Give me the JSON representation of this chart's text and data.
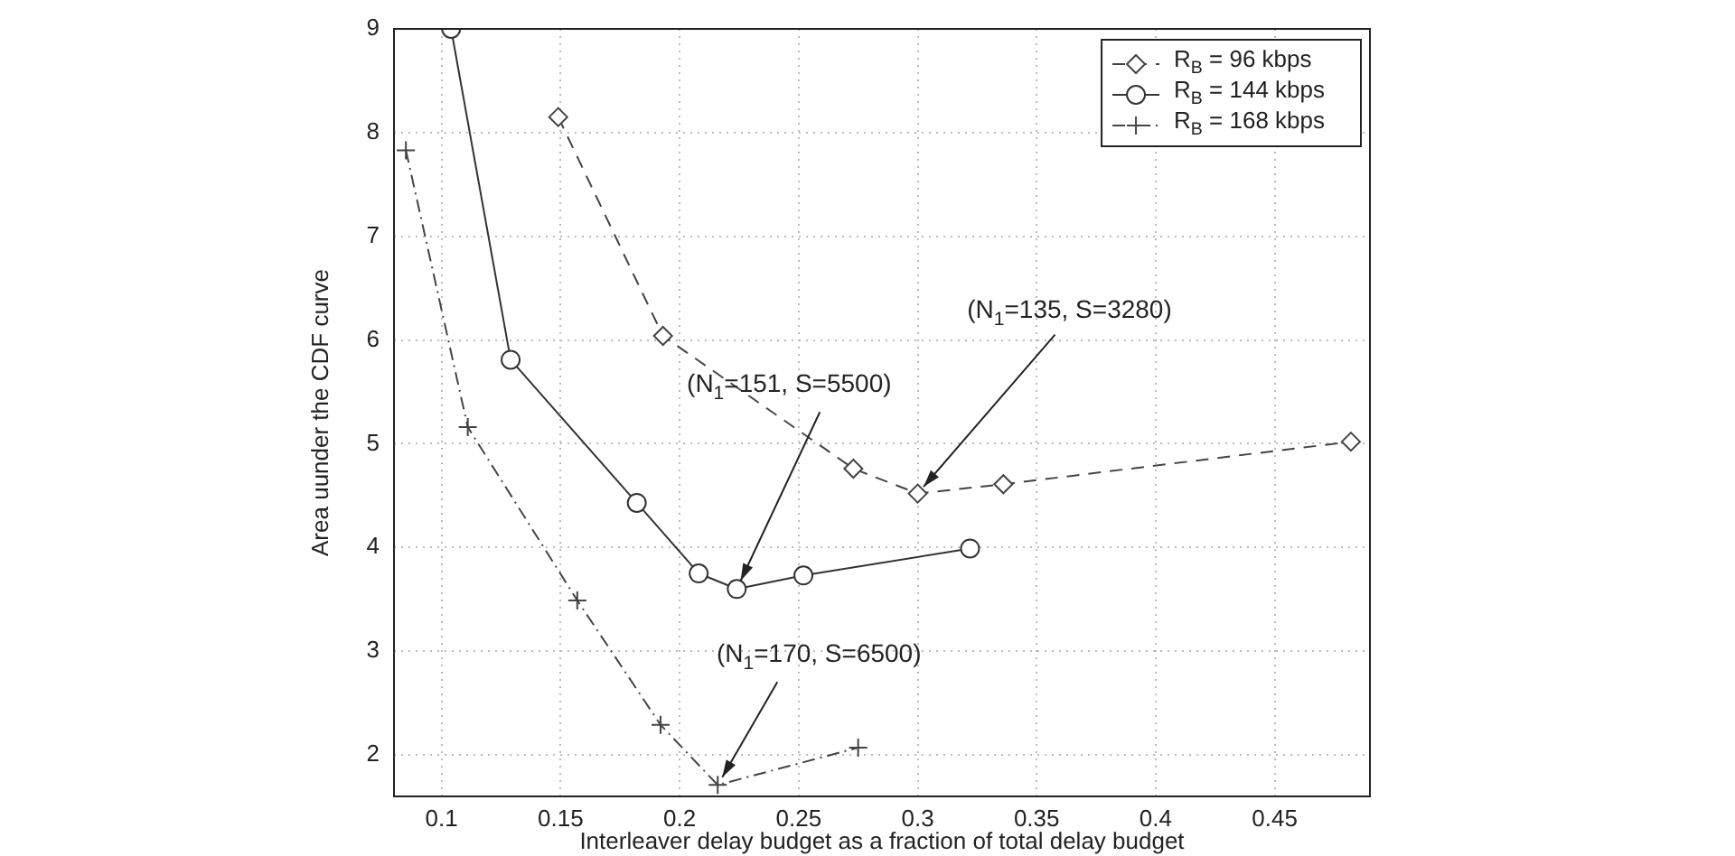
{
  "chart_data": {
    "type": "line",
    "xlabel": "Interleaver delay budget as a fraction of total delay budget",
    "ylabel": "Area uunder the CDF curve",
    "xlim": [
      0.08,
      0.49
    ],
    "xticks": [
      0.1,
      0.15,
      0.2,
      0.25,
      0.3,
      0.35,
      0.4,
      0.45
    ],
    "ylim": [
      1.6,
      9
    ],
    "yticks": [
      2,
      3,
      4,
      5,
      6,
      7,
      8,
      9
    ],
    "grid": true,
    "legend": "top right",
    "series": [
      {
        "name": "R$_{B}$ = 96 kbps",
        "color": "#444444",
        "marker": "diamond",
        "line_style": "dashed",
        "x": [
          0.149,
          0.193,
          0.273,
          0.3,
          0.336,
          0.482
        ],
        "values": [
          8.15,
          6.04,
          4.76,
          4.52,
          4.61,
          5.02
        ]
      },
      {
        "name": "R$_{B}$ = 144 kbps",
        "color": "#333333",
        "marker": "circle",
        "line_style": "solid",
        "x": [
          0.104,
          0.129,
          0.182,
          0.208,
          0.224,
          0.252,
          0.322
        ],
        "values": [
          9,
          5.81,
          4.43,
          3.75,
          3.6,
          3.73,
          3.99
        ]
      },
      {
        "name": "R$_{B}$ = 168 kbps",
        "color": "#444444",
        "marker": "cross",
        "line_style": "dashdot",
        "x": [
          0.085,
          0.111,
          0.157,
          0.192,
          0.216,
          0.275
        ],
        "values": [
          7.83,
          5.16,
          3.49,
          2.29,
          1.71,
          2.07
        ]
      }
    ],
    "annotations": [
      {
        "text": "(N$_{1}$=135, S=3280)",
        "x": 0.3,
        "y": 4.52
      },
      {
        "text": "(N$_{1}$=151, S=5500)",
        "x": 0.224,
        "y": 3.6
      },
      {
        "text": "(N$_{1}$=170, S=6500)",
        "x": 0.216,
        "y": 1.71
      }
    ]
  }
}
